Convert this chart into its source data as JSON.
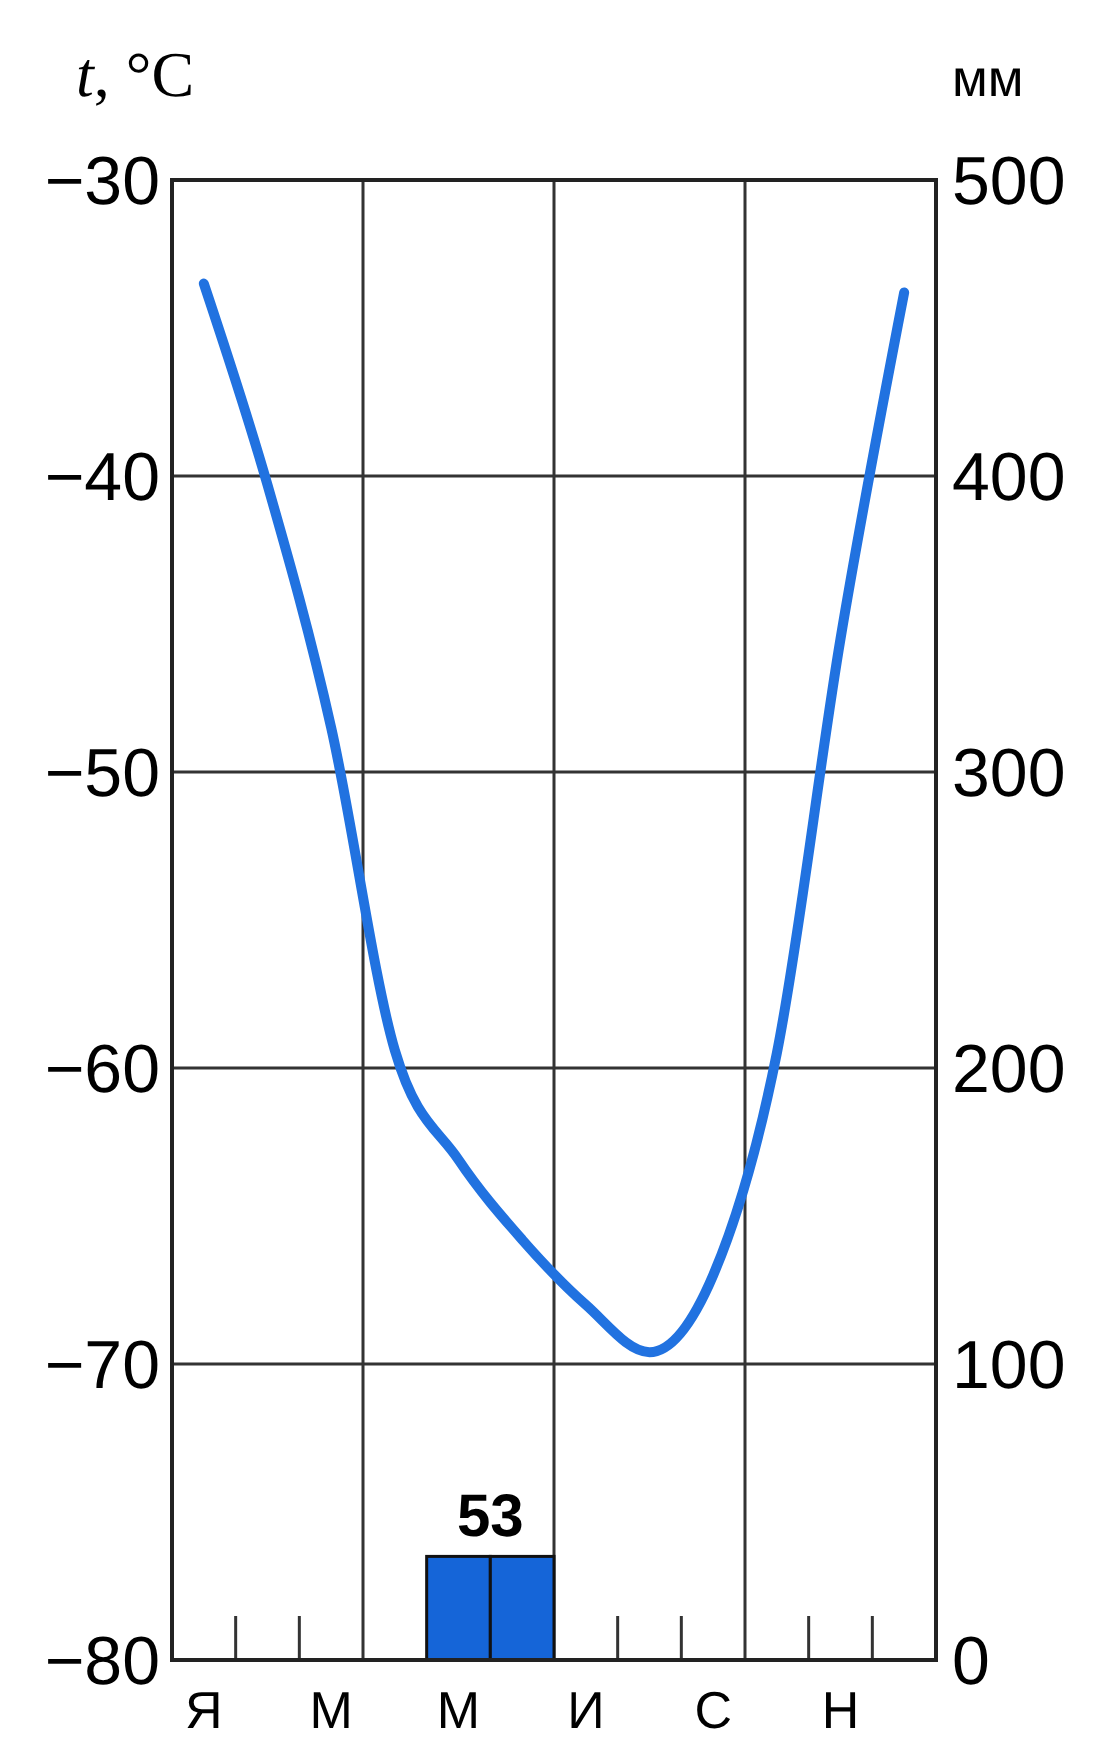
{
  "chart_data": {
    "type": "line",
    "ylabel": "t, °C",
    "y2label": "мм",
    "categories": [
      "Я",
      null,
      "М",
      null,
      "М",
      null,
      "И",
      null,
      "С",
      null,
      "Н",
      null
    ],
    "ylim": [
      -80,
      -30
    ],
    "yticks": [
      -80,
      -70,
      -60,
      -50,
      -40,
      -30
    ],
    "y2lim": [
      0,
      500
    ],
    "y2ticks": [
      0,
      100,
      200,
      300,
      400,
      500
    ],
    "grid": true,
    "series": [
      {
        "type": "bar",
        "axis": "y2",
        "color": "#1565d8",
        "values": [
          null,
          null,
          null,
          null,
          35,
          35,
          null,
          null,
          null,
          null,
          null,
          null
        ]
      },
      {
        "color": "#2172e0",
        "values": [
          -33.5,
          -40.3,
          -48.5,
          -59.4,
          -63.1,
          -65.8,
          -68.0,
          -69.6,
          -67.0,
          -59.5,
          -45.5,
          -33.8
        ]
      }
    ],
    "annotations": [
      "53"
    ]
  }
}
